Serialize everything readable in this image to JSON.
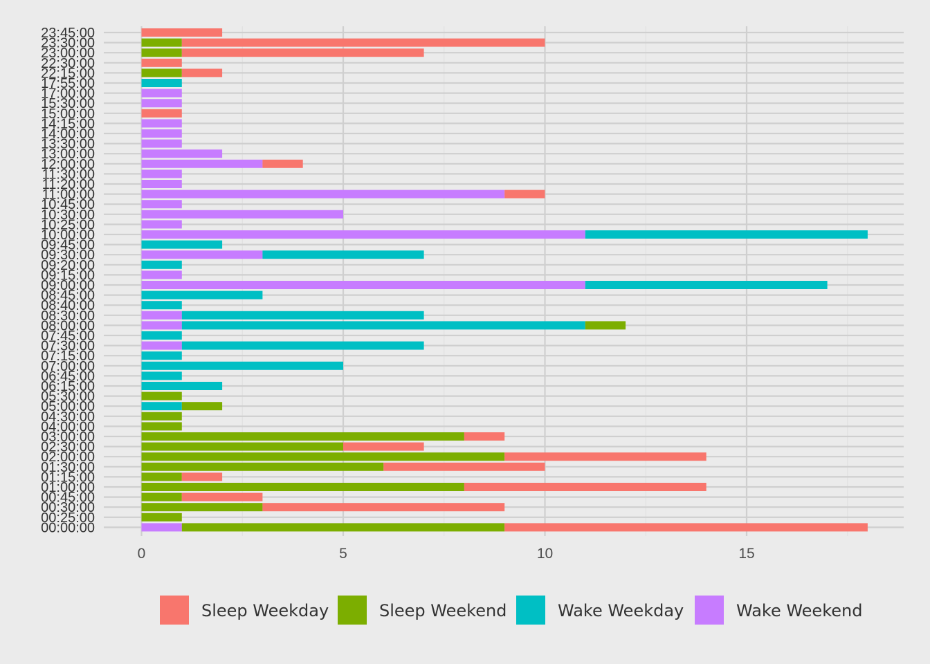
{
  "chart_data": {
    "type": "bar",
    "orientation": "horizontal",
    "stacked": true,
    "title": "",
    "xlabel": "",
    "ylabel": "",
    "xlim": [
      0,
      19
    ],
    "x_ticks": [
      "0",
      "5",
      "10",
      "15"
    ],
    "grid": true,
    "legend_position": "bottom",
    "categories": [
      "00:00:00",
      "00:25:00",
      "00:30:00",
      "00:45:00",
      "01:00:00",
      "01:15:00",
      "01:30:00",
      "02:00:00",
      "02:30:00",
      "03:00:00",
      "04:00:00",
      "04:30:00",
      "05:00:00",
      "05:30:00",
      "06:15:00",
      "06:45:00",
      "07:00:00",
      "07:15:00",
      "07:30:00",
      "07:45:00",
      "08:00:00",
      "08:30:00",
      "08:40:00",
      "08:45:00",
      "09:00:00",
      "09:15:00",
      "09:20:00",
      "09:30:00",
      "09:45:00",
      "10:00:00",
      "10:25:00",
      "10:30:00",
      "10:45:00",
      "11:00:00",
      "11:20:00",
      "11:30:00",
      "12:00:00",
      "13:00:00",
      "13:30:00",
      "14:00:00",
      "14:15:00",
      "15:00:00",
      "15:30:00",
      "17:00:00",
      "17:55:00",
      "22:15:00",
      "22:30:00",
      "23:00:00",
      "23:30:00",
      "23:45:00"
    ],
    "stack_order": [
      "Wake Weekend",
      "Wake Weekday",
      "Sleep Weekend",
      "Sleep Weekday"
    ],
    "series": [
      {
        "name": "Sleep Weekday",
        "color": "#F8766D",
        "values": [
          9,
          0,
          6,
          2,
          6,
          1,
          4,
          5,
          2,
          1,
          0,
          0,
          0,
          0,
          0,
          0,
          0,
          0,
          0,
          0,
          0,
          0,
          0,
          0,
          0,
          0,
          0,
          0,
          0,
          0,
          0,
          0,
          0,
          1,
          0,
          0,
          1,
          0,
          0,
          0,
          0,
          1,
          0,
          0,
          0,
          1,
          1,
          6,
          9,
          2
        ]
      },
      {
        "name": "Sleep Weekend",
        "color": "#7CAE00",
        "values": [
          8,
          1,
          3,
          1,
          8,
          1,
          6,
          9,
          5,
          8,
          1,
          1,
          1,
          1,
          0,
          0,
          0,
          0,
          0,
          0,
          1,
          0,
          0,
          0,
          0,
          0,
          0,
          0,
          0,
          0,
          0,
          0,
          0,
          0,
          0,
          0,
          0,
          0,
          0,
          0,
          0,
          0,
          0,
          0,
          0,
          1,
          0,
          1,
          1,
          0
        ]
      },
      {
        "name": "Wake Weekday",
        "color": "#00BFC4",
        "values": [
          0,
          0,
          0,
          0,
          0,
          0,
          0,
          0,
          0,
          0,
          0,
          0,
          1,
          0,
          2,
          1,
          5,
          1,
          6,
          1,
          10,
          6,
          1,
          3,
          6,
          0,
          1,
          4,
          2,
          7,
          0,
          0,
          0,
          0,
          0,
          0,
          0,
          0,
          0,
          0,
          0,
          0,
          0,
          0,
          1,
          0,
          0,
          0,
          0,
          0
        ]
      },
      {
        "name": "Wake Weekend",
        "color": "#C77CFF",
        "values": [
          1,
          0,
          0,
          0,
          0,
          0,
          0,
          0,
          0,
          0,
          0,
          0,
          0,
          0,
          0,
          0,
          0,
          0,
          1,
          0,
          1,
          1,
          0,
          0,
          11,
          1,
          0,
          3,
          0,
          11,
          1,
          5,
          1,
          9,
          1,
          1,
          3,
          2,
          1,
          1,
          1,
          0,
          1,
          1,
          0,
          0,
          0,
          0,
          0,
          0
        ]
      }
    ],
    "legend_order": [
      "Sleep Weekday",
      "Sleep Weekend",
      "Wake Weekday",
      "Wake Weekend"
    ]
  }
}
